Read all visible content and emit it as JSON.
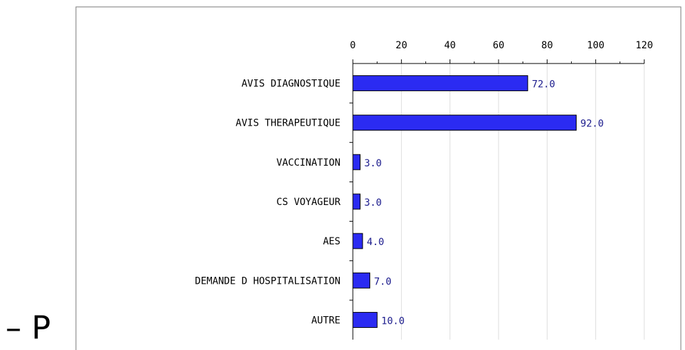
{
  "caption": "– P",
  "chart_data": {
    "type": "hbar",
    "categories": [
      "AVIS DIAGNOSTIQUE",
      "AVIS THERAPEUTIQUE",
      "VACCINATION",
      "CS VOYAGEUR",
      "AES",
      "DEMANDE D HOSPITALISATION",
      "AUTRE"
    ],
    "values": [
      72,
      92,
      3,
      3,
      4,
      7,
      10
    ],
    "value_labels": [
      "72.0",
      "92.0",
      "3.0",
      "3.0",
      "4.0",
      "7.0",
      "10.0"
    ],
    "color": "#2b2bf2",
    "xlim": [
      0,
      120
    ],
    "xticks": [
      0,
      20,
      40,
      60,
      80,
      100,
      120
    ],
    "grid": true
  }
}
